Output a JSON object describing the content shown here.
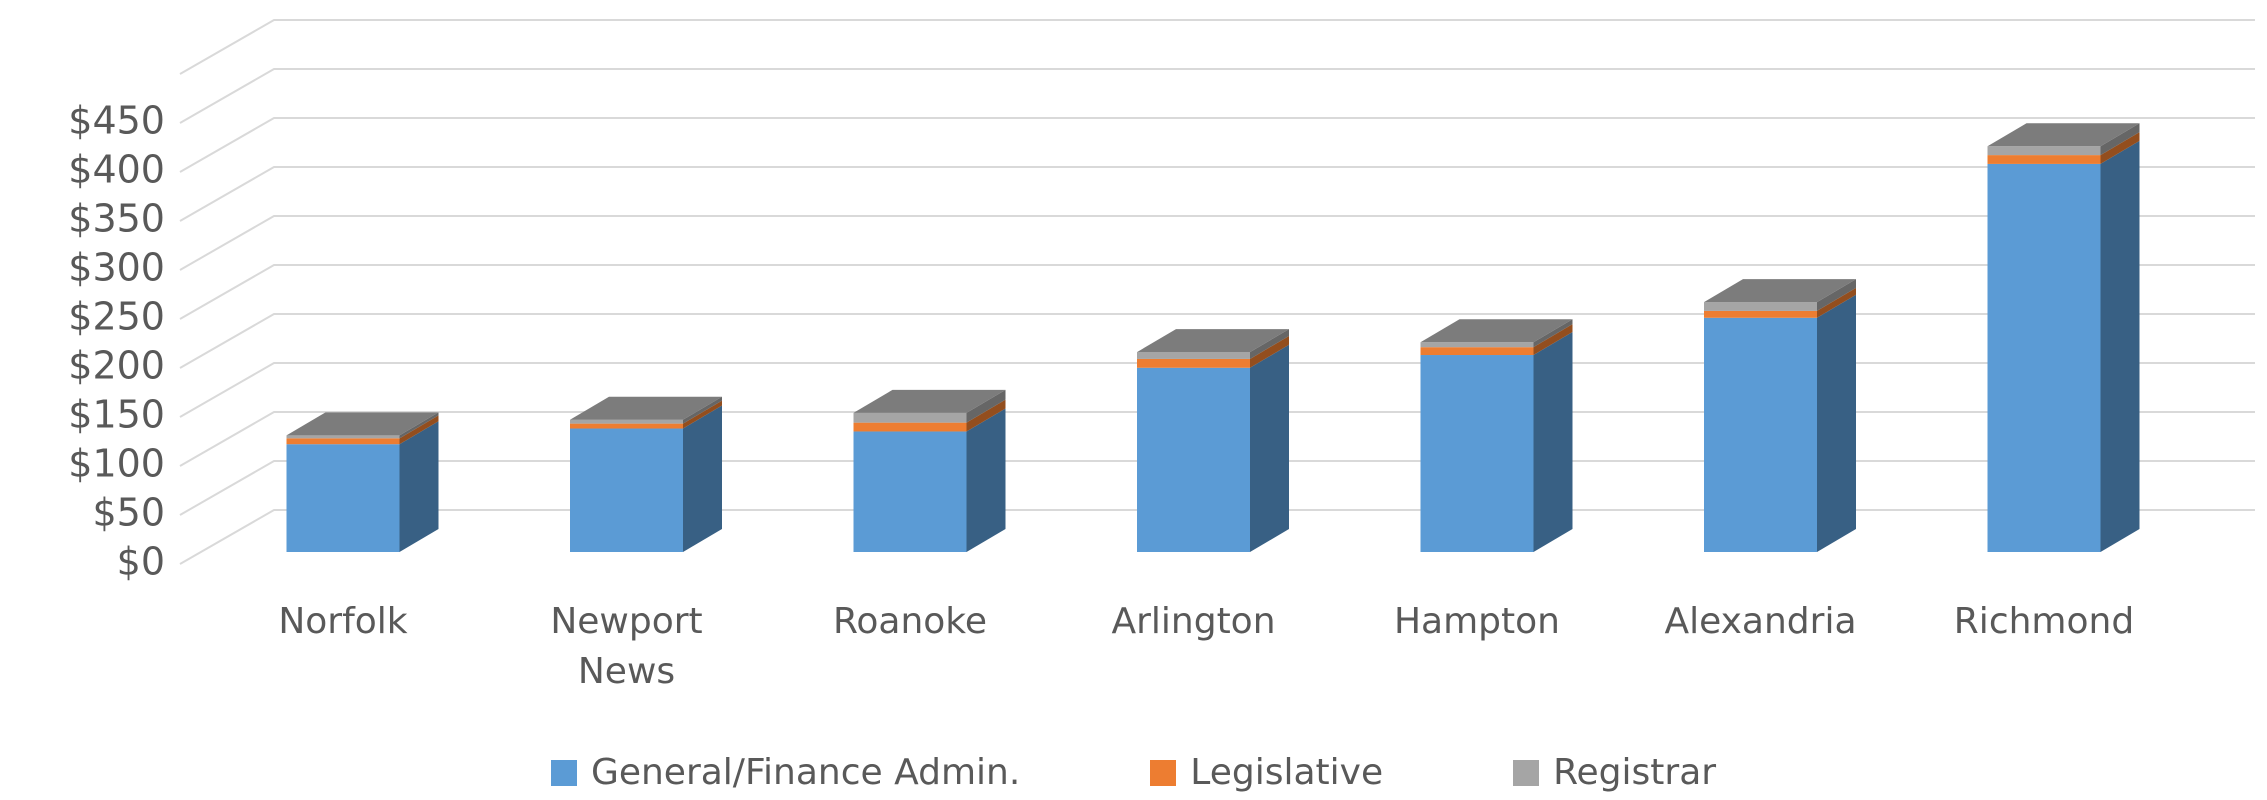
{
  "chart_data": {
    "type": "bar3d_stacked",
    "categories": [
      "Norfolk",
      "Newport News",
      "Roanoke",
      "Arlington",
      "Hampton",
      "Alexandria",
      "Richmond"
    ],
    "series": [
      {
        "name": "General/Finance Admin.",
        "color": "#5b9bd5",
        "values": [
          110,
          126,
          123,
          188,
          201,
          239,
          396
        ]
      },
      {
        "name": "Legislative",
        "color": "#ed7d31",
        "values": [
          6,
          5,
          9,
          9,
          8,
          7,
          9
        ]
      },
      {
        "name": "Registrar",
        "color": "#a5a5a5",
        "values": [
          3,
          4,
          10,
          7,
          5,
          9,
          9
        ]
      }
    ],
    "ylim": [
      0,
      500
    ],
    "yticks": [
      {
        "value": 0,
        "label": "$0"
      },
      {
        "value": 50,
        "label": "$50"
      },
      {
        "value": 100,
        "label": "$100"
      },
      {
        "value": 150,
        "label": "$150"
      },
      {
        "value": 200,
        "label": "$200"
      },
      {
        "value": 250,
        "label": "$250"
      },
      {
        "value": 300,
        "label": "$300"
      },
      {
        "value": 350,
        "label": "$350"
      },
      {
        "value": 400,
        "label": "$400"
      },
      {
        "value": 450,
        "label": "$450"
      }
    ],
    "grid": true,
    "legend": "bottom"
  }
}
